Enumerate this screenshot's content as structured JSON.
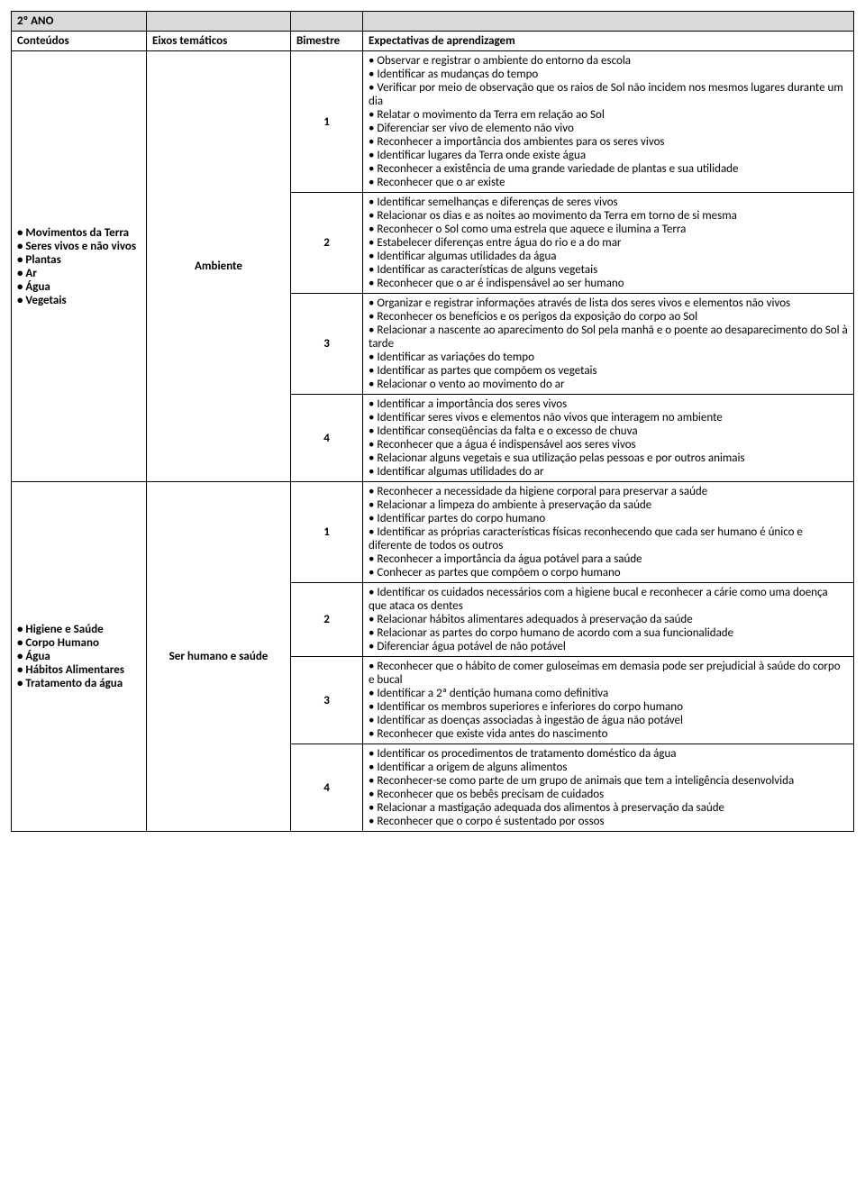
{
  "title": "2º ANO",
  "headers": {
    "conteudos": "Conteúdos",
    "eixos": "Eixos temáticos",
    "bimestre": "Bimestre",
    "expectativas": "Expectativas de aprendizagem"
  },
  "sections": [
    {
      "conteudos": [
        "• Movimentos da Terra",
        "• Seres vivos e não vivos",
        "• Plantas",
        "• Ar",
        "• Água",
        "• Vegetais"
      ],
      "eixo": "Ambiente",
      "bimesters": [
        {
          "num": "1",
          "items": [
            "• Observar e registrar o ambiente do entorno da escola",
            "• Identificar as mudanças do tempo",
            "• Verificar por meio de observação que os raios de Sol não incidem nos mesmos lugares durante um dia",
            "• Relatar o movimento da Terra em relação ao Sol",
            "• Diferenciar ser vivo de elemento não vivo",
            "• Reconhecer a importância dos ambientes para os seres vivos",
            "• Identificar lugares da Terra onde existe água",
            "• Reconhecer a existência de uma grande variedade de plantas e sua utilidade",
            "• Reconhecer que o ar existe"
          ]
        },
        {
          "num": "2",
          "items": [
            "• Identificar semelhanças e diferenças de seres vivos",
            "• Relacionar os dias e as noites ao movimento da Terra em torno de si mesma",
            "• Reconhecer o Sol como uma estrela que aquece e ilumina a Terra",
            "• Estabelecer diferenças entre água do rio e a do mar",
            "• Identificar algumas utilidades da água",
            "• Identificar as características de alguns vegetais",
            "• Reconhecer que o ar é indispensável ao ser humano"
          ]
        },
        {
          "num": "3",
          "items": [
            "• Organizar e registrar informações através de lista dos seres vivos e elementos não vivos",
            "• Reconhecer os benefícios e os perigos da exposição do corpo ao Sol",
            "• Relacionar a nascente ao aparecimento do Sol pela manhã e o poente ao desaparecimento do Sol à tarde",
            "• Identificar as variações do tempo",
            "• Identificar as partes que compõem os vegetais",
            "• Relacionar o vento ao movimento do ar"
          ]
        },
        {
          "num": "4",
          "items": [
            "• Identificar a importância dos seres vivos",
            "• Identificar seres vivos e elementos não vivos que interagem no ambiente",
            "• Identificar conseqüências da falta e o excesso de chuva",
            "• Reconhecer que a água é indispensável aos seres vivos",
            "• Relacionar alguns vegetais e sua utilização pelas pessoas e por outros animais",
            "• Identificar algumas utilidades do ar"
          ]
        }
      ]
    },
    {
      "conteudos": [
        "• Higiene e Saúde",
        "• Corpo Humano",
        "• Água",
        "• Hábitos Alimentares",
        "• Tratamento da água"
      ],
      "eixo": "Ser humano e saúde",
      "bimesters": [
        {
          "num": "1",
          "items": [
            "• Reconhecer a necessidade da higiene corporal para preservar a saúde",
            "• Relacionar a limpeza do ambiente à preservação da saúde",
            "• Identificar partes do corpo humano",
            "• Identificar as próprias características físicas reconhecendo que cada ser humano é único e diferente de todos os outros",
            "• Reconhecer a importância da água potável para a saúde",
            "• Conhecer as partes que compõem o corpo humano"
          ]
        },
        {
          "num": "2",
          "items": [
            "• Identificar os cuidados necessários com a higiene bucal e reconhecer a cárie como uma doença que ataca os dentes",
            "• Relacionar hábitos alimentares adequados à preservação da saúde",
            "• Relacionar as partes do corpo humano de acordo com a sua funcionalidade",
            "• Diferenciar água potável de não potável"
          ]
        },
        {
          "num": "3",
          "items": [
            "• Reconhecer que o hábito de comer guloseimas em demasia pode ser prejudicial à saúde do corpo e bucal",
            "• Identificar a 2ª dentição humana como definitiva",
            "• Identificar os membros superiores e inferiores do corpo humano",
            "• Identificar as doenças associadas à ingestão de água não potável",
            "• Reconhecer que existe vida antes do nascimento"
          ]
        },
        {
          "num": "4",
          "items": [
            "• Identificar os procedimentos de tratamento doméstico da água",
            "• Identificar a origem de alguns alimentos",
            "• Reconhecer-se como parte de um grupo de animais que tem a inteligência desenvolvida",
            "• Reconhecer que os bebês precisam de cuidados",
            "• Relacionar a mastigação adequada dos alimentos à preservação da saúde",
            "• Reconhecer que o corpo é sustentado por ossos"
          ]
        }
      ]
    }
  ]
}
